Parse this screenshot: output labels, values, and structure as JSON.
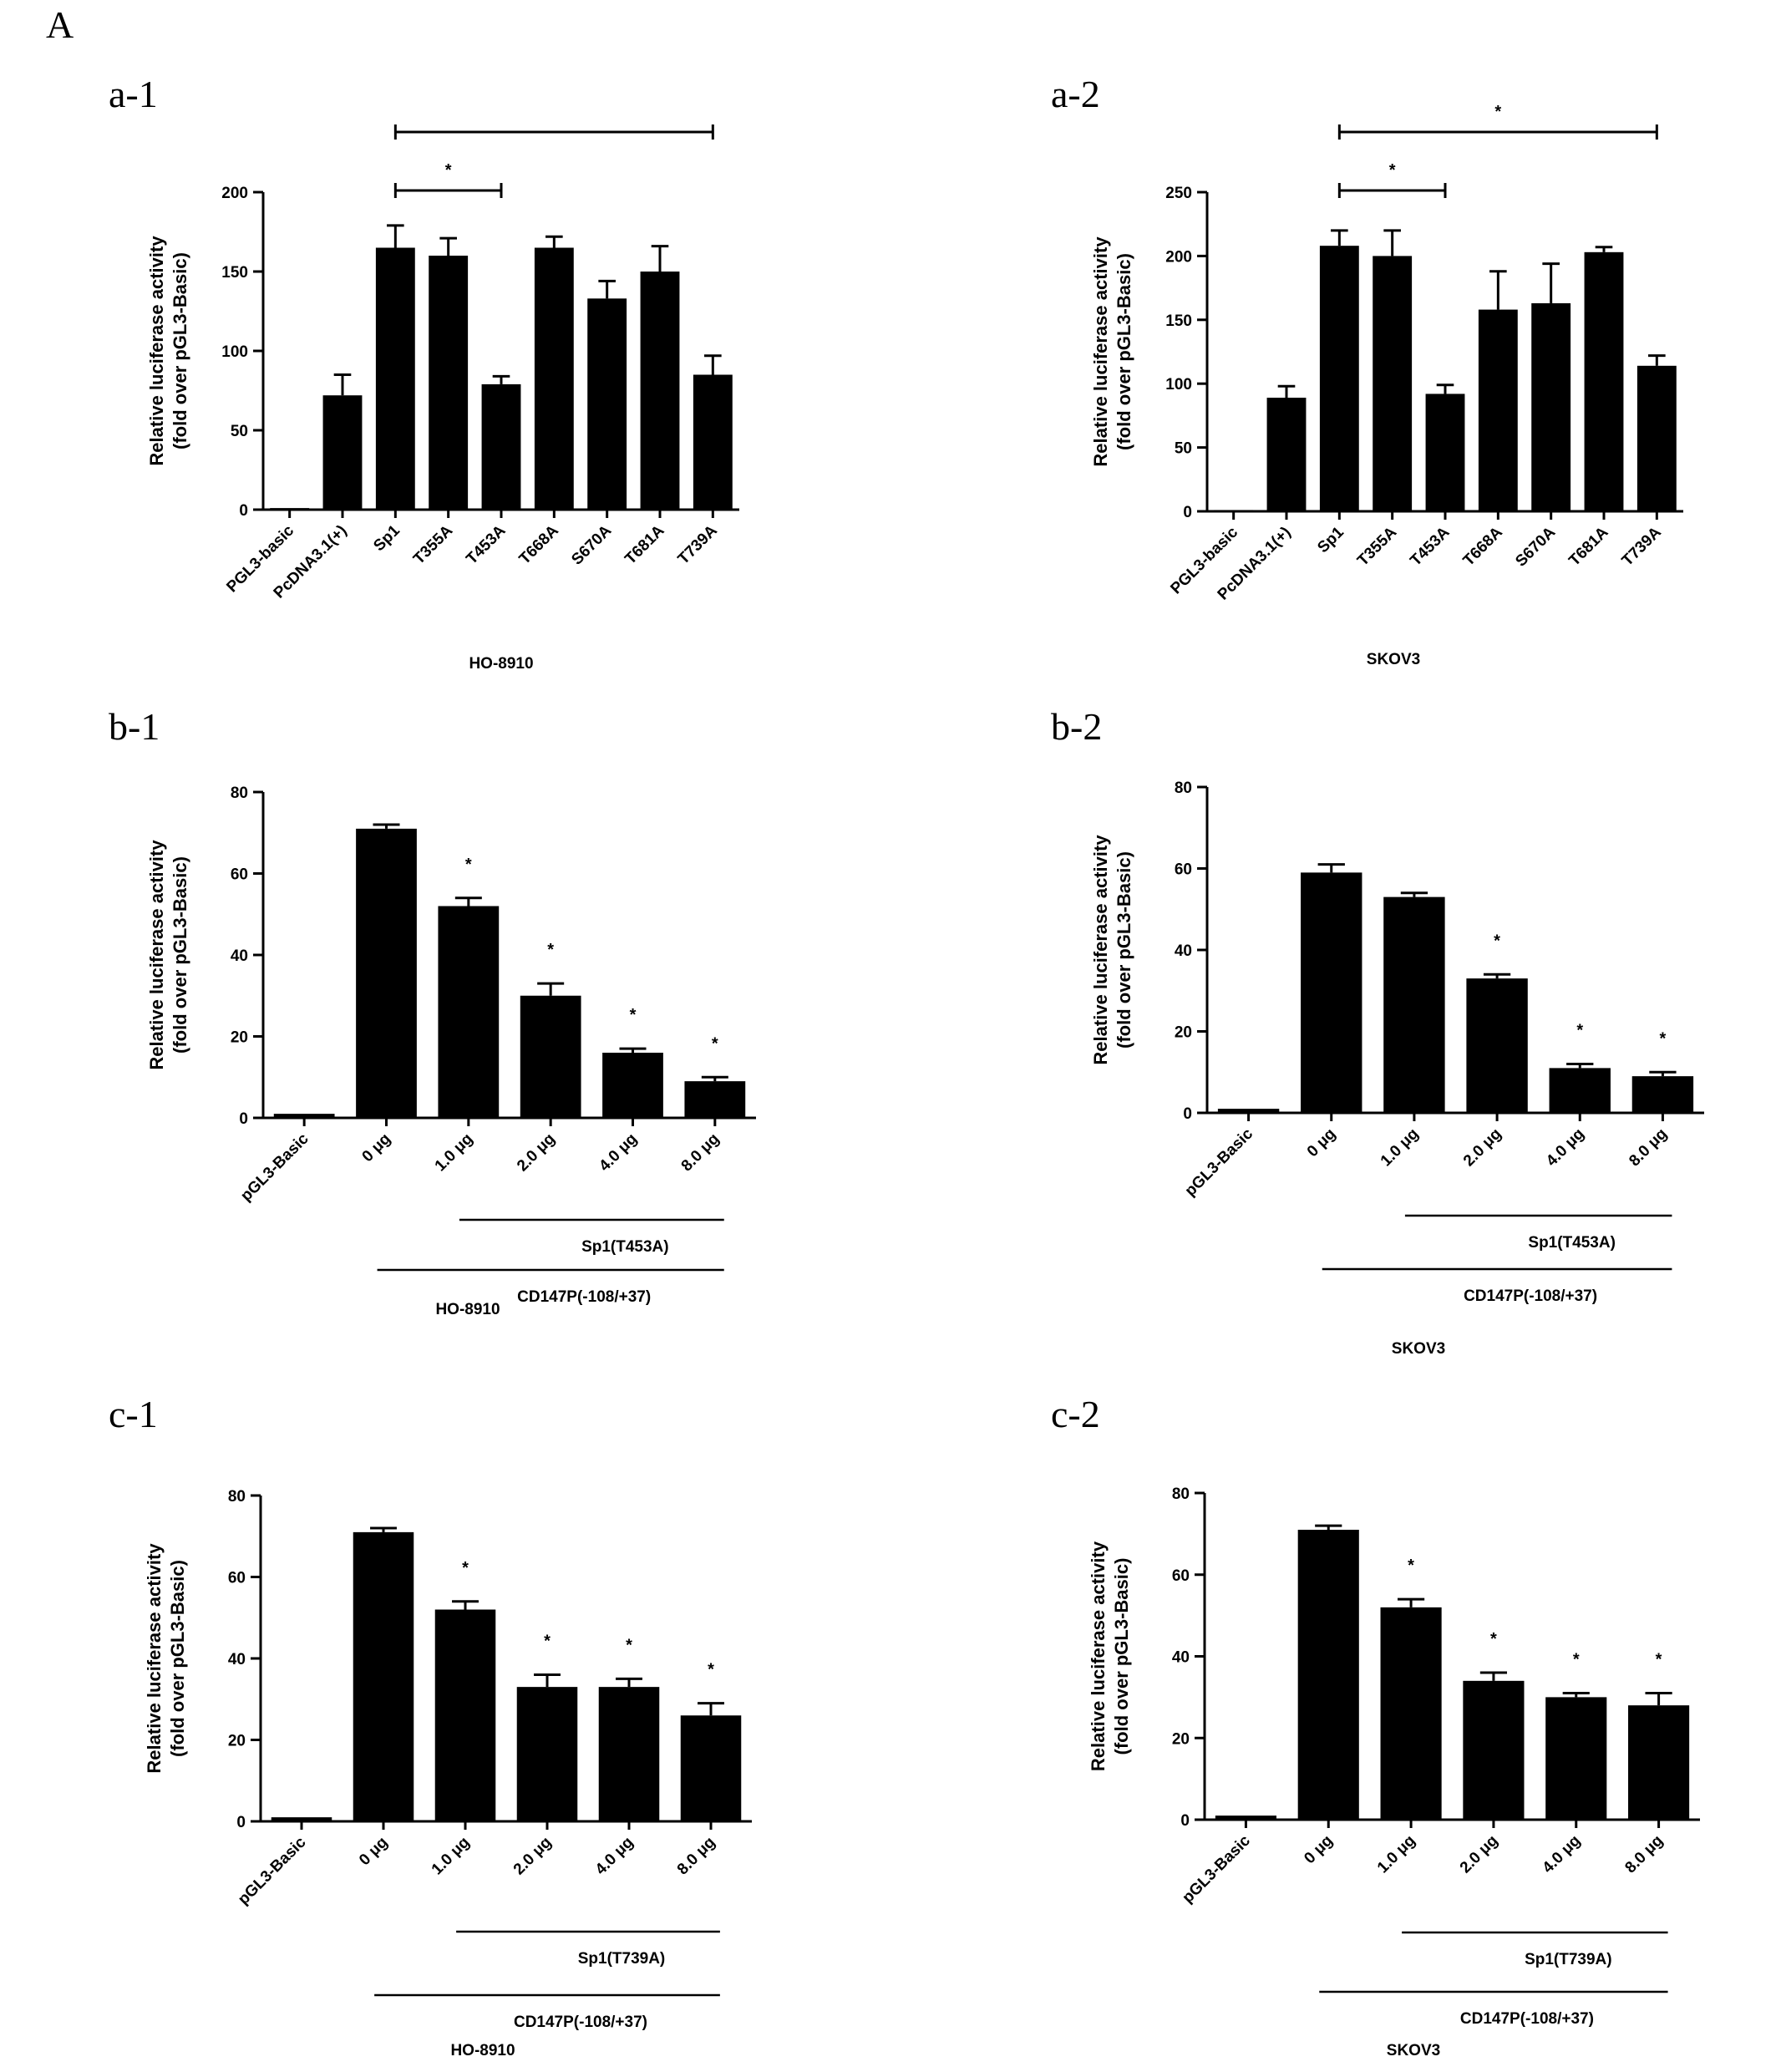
{
  "figure_letter": "A",
  "chart_data": [
    {
      "id": "a-1",
      "type": "bar",
      "panel_label": "a-1",
      "ylabel": [
        "Relative luciferase activity",
        "(fold over pGL3-Basic)"
      ],
      "ylim": [
        0,
        200
      ],
      "yticks": [
        0,
        50,
        100,
        150,
        200
      ],
      "categories": [
        "PGL3-basic",
        "PcDNA3.1(+)",
        "Sp1",
        "T355A",
        "T453A",
        "T668A",
        "S670A",
        "T681A",
        "T739A"
      ],
      "values": [
        1,
        72,
        165,
        160,
        79,
        165,
        133,
        150,
        85
      ],
      "errors": [
        0,
        13,
        14,
        11,
        5,
        7,
        11,
        16,
        12
      ],
      "cell_line": "HO-8910",
      "significance": [
        {
          "from": 2,
          "to": 4,
          "label": "*"
        },
        {
          "from": 2,
          "to": 8,
          "label": ""
        }
      ],
      "stars": [],
      "groups": []
    },
    {
      "id": "a-2",
      "type": "bar",
      "panel_label": "a-2",
      "ylabel": [
        "Relative luciferase activity",
        "(fold over pGL3-Basic)"
      ],
      "ylim": [
        0,
        250
      ],
      "yticks": [
        0,
        50,
        100,
        150,
        200,
        250
      ],
      "categories": [
        "PGL3-basic",
        "PcDNA3.1(+)",
        "Sp1",
        "T355A",
        "T453A",
        "T668A",
        "S670A",
        "T681A",
        "T739A"
      ],
      "values": [
        1,
        89,
        208,
        200,
        92,
        158,
        163,
        203,
        114
      ],
      "errors": [
        0,
        9,
        12,
        20,
        7,
        30,
        31,
        4,
        8
      ],
      "cell_line": "SKOV3",
      "significance": [
        {
          "from": 2,
          "to": 4,
          "label": "*"
        },
        {
          "from": 2,
          "to": 8,
          "label": "*"
        }
      ],
      "stars": [],
      "groups": []
    },
    {
      "id": "b-1",
      "type": "bar",
      "panel_label": "b-1",
      "ylabel": [
        "Relative luciferase activity",
        "(fold over pGL3-Basic)"
      ],
      "ylim": [
        0,
        80
      ],
      "yticks": [
        0,
        20,
        40,
        60,
        80
      ],
      "categories": [
        "pGL3-Basic",
        "0 μg",
        "1.0 μg",
        "2.0 μg",
        "4.0 μg",
        "8.0 μg"
      ],
      "values": [
        1,
        71,
        52,
        30,
        16,
        9
      ],
      "errors": [
        0,
        1,
        2,
        3,
        1,
        1
      ],
      "cell_line": "HO-8910",
      "significance": [],
      "stars": [
        "",
        "",
        "*",
        "*",
        "*",
        "*"
      ],
      "groups": [
        {
          "from": 2,
          "to": 5,
          "label": "Sp1(T453A)"
        },
        {
          "from": 1,
          "to": 5,
          "label": "CD147P(-108/+37)"
        }
      ]
    },
    {
      "id": "b-2",
      "type": "bar",
      "panel_label": "b-2",
      "ylabel": [
        "Relative luciferase activity",
        "(fold over pGL3-Basic)"
      ],
      "ylim": [
        0,
        80
      ],
      "yticks": [
        0,
        20,
        40,
        60,
        80
      ],
      "categories": [
        "pGL3-Basic",
        "0 μg",
        "1.0 μg",
        "2.0 μg",
        "4.0 μg",
        "8.0 μg"
      ],
      "values": [
        1,
        59,
        53,
        33,
        11,
        9
      ],
      "errors": [
        0,
        2,
        1,
        1,
        1,
        1
      ],
      "cell_line": "SKOV3",
      "significance": [],
      "stars": [
        "",
        "",
        "",
        "*",
        "*",
        "*"
      ],
      "groups": [
        {
          "from": 2,
          "to": 5,
          "label": "Sp1(T453A)"
        },
        {
          "from": 1,
          "to": 5,
          "label": "CD147P(-108/+37)"
        }
      ]
    },
    {
      "id": "c-1",
      "type": "bar",
      "panel_label": "c-1",
      "ylabel": [
        "Relative luciferase activity",
        "(fold over pGL3-Basic)"
      ],
      "ylim": [
        0,
        80
      ],
      "yticks": [
        0,
        20,
        40,
        60,
        80
      ],
      "categories": [
        "pGL3-Basic",
        "0 μg",
        "1.0 μg",
        "2.0 μg",
        "4.0 μg",
        "8.0 μg"
      ],
      "values": [
        1,
        71,
        52,
        33,
        33,
        26
      ],
      "errors": [
        0,
        1,
        2,
        3,
        2,
        3
      ],
      "cell_line": "HO-8910",
      "significance": [],
      "stars": [
        "",
        "",
        "*",
        "*",
        "*",
        "*"
      ],
      "groups": [
        {
          "from": 2,
          "to": 5,
          "label": "Sp1(T739A)"
        },
        {
          "from": 1,
          "to": 5,
          "label": "CD147P(-108/+37)"
        }
      ]
    },
    {
      "id": "c-2",
      "type": "bar",
      "panel_label": "c-2",
      "ylabel": [
        "Relative luciferase activity",
        "(fold over pGL3-Basic)"
      ],
      "ylim": [
        0,
        80
      ],
      "yticks": [
        0,
        20,
        40,
        60,
        80
      ],
      "categories": [
        "pGL3-Basic",
        "0 μg",
        "1.0 μg",
        "2.0 μg",
        "4.0 μg",
        "8.0 μg"
      ],
      "values": [
        1,
        71,
        52,
        34,
        30,
        28
      ],
      "errors": [
        0,
        1,
        2,
        2,
        1,
        3
      ],
      "cell_line": "SKOV3",
      "significance": [],
      "stars": [
        "",
        "",
        "*",
        "*",
        "*",
        "*"
      ],
      "groups": [
        {
          "from": 2,
          "to": 5,
          "label": "Sp1(T739A)"
        },
        {
          "from": 1,
          "to": 5,
          "label": "CD147P(-108/+37)"
        }
      ]
    }
  ]
}
